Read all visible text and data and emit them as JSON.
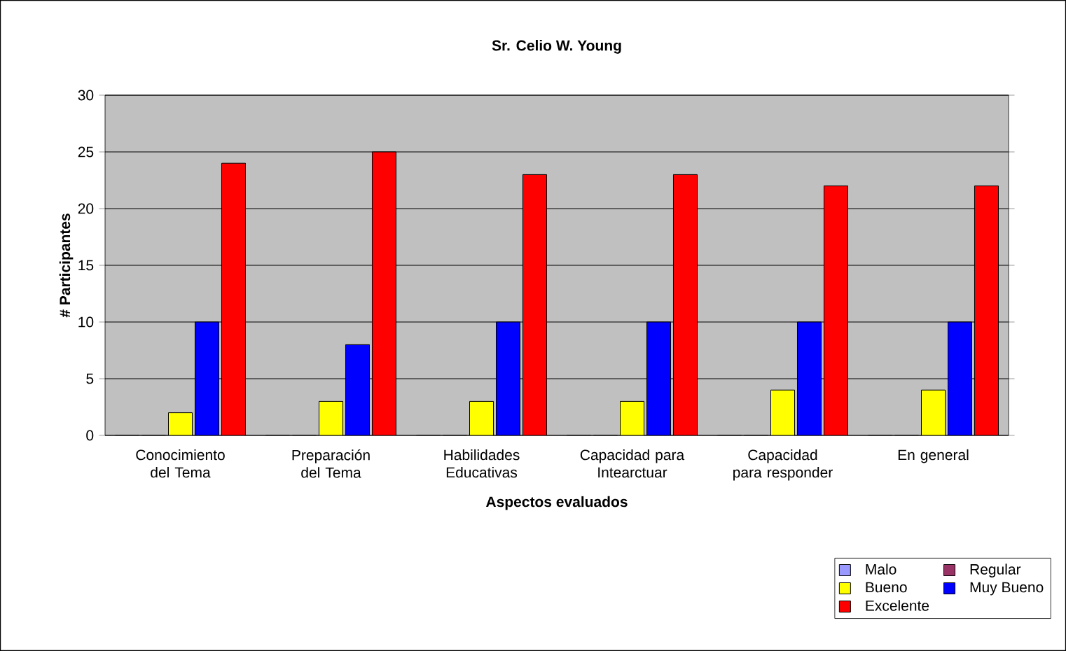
{
  "chart_data": {
    "type": "bar",
    "title": "Sr. Celio W. Young",
    "xlabel": "Aspectos evaluados",
    "ylabel": "# Participantes",
    "categories": [
      "Conocimiento del Tema",
      "Preparación del Tema",
      "Habilidades Educativas",
      "Capacidad para Intearctuar",
      "Capacidad para responder",
      "En general"
    ],
    "series": [
      {
        "name": "Malo",
        "color": "#9999ff",
        "values": [
          0,
          0,
          0,
          0,
          0,
          0
        ]
      },
      {
        "name": "Regular",
        "color": "#993366",
        "values": [
          0,
          0,
          0,
          0,
          0,
          0
        ]
      },
      {
        "name": "Bueno",
        "color": "#ffff00",
        "values": [
          2,
          3,
          3,
          3,
          4,
          4
        ]
      },
      {
        "name": "Muy Bueno",
        "color": "#0000ff",
        "values": [
          10,
          8,
          10,
          10,
          10,
          10
        ]
      },
      {
        "name": "Excelente",
        "color": "#ff0000",
        "values": [
          24,
          25,
          23,
          23,
          22,
          22
        ]
      }
    ],
    "ylim": [
      0,
      30
    ],
    "yticks": [
      0,
      5,
      10,
      15,
      20,
      25,
      30
    ],
    "grid": "y",
    "legend": "bottom right"
  }
}
